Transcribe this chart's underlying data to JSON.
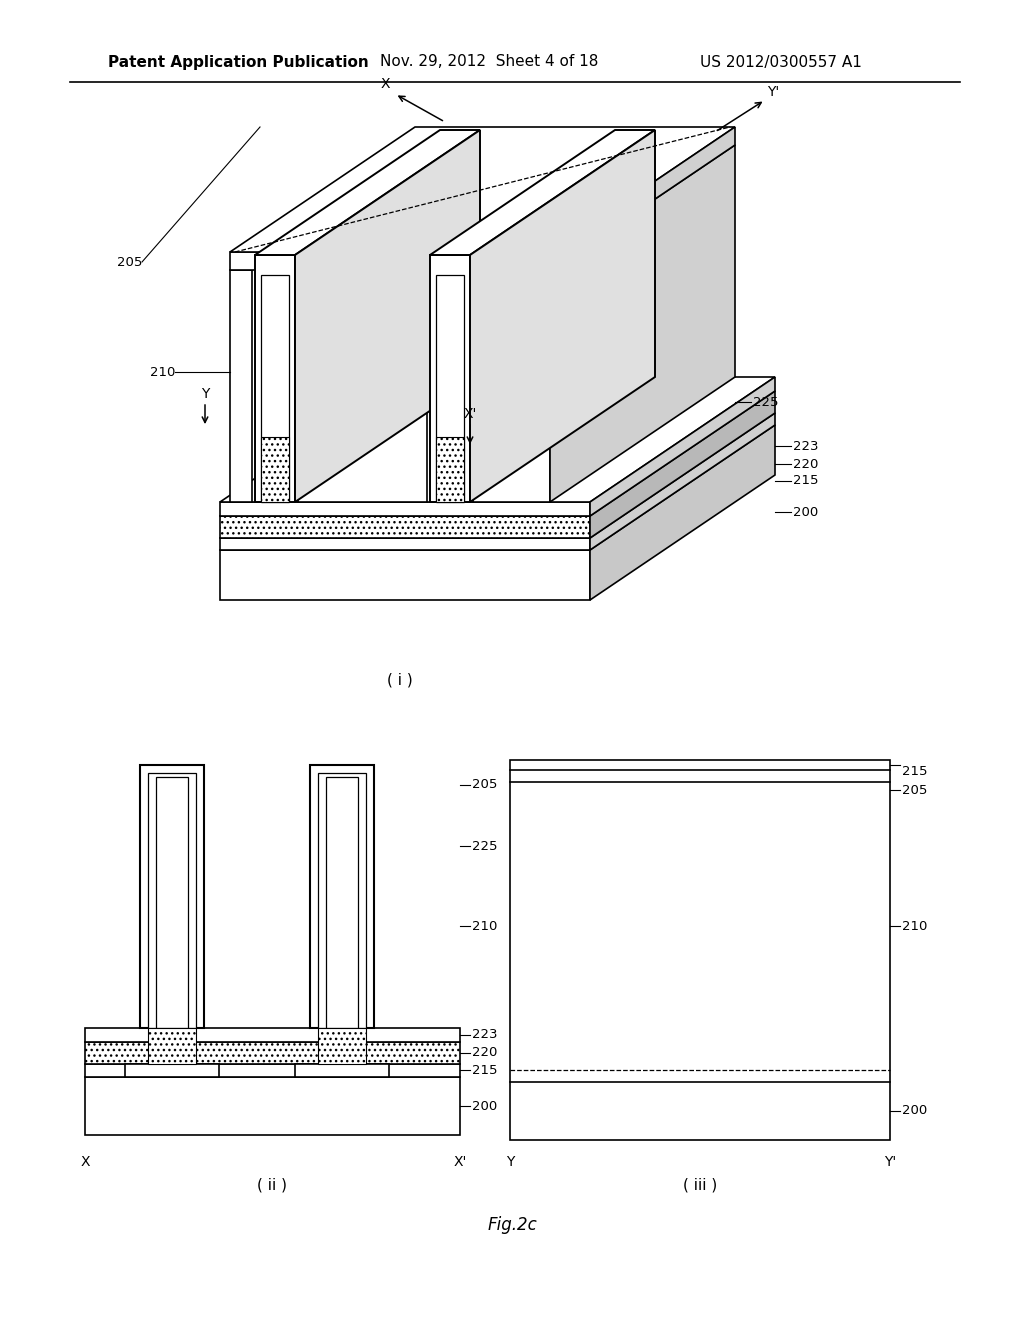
{
  "background_color": "#ffffff",
  "header_left": "Patent Application Publication",
  "header_mid": "Nov. 29, 2012  Sheet 4 of 18",
  "header_right": "US 2012/0300557 A1",
  "footer_label": "Fig.2c",
  "title_i": "( i )",
  "title_ii": "( ii )",
  "title_iii": "( iii )",
  "lw": 1.2,
  "hatch": "xxx"
}
